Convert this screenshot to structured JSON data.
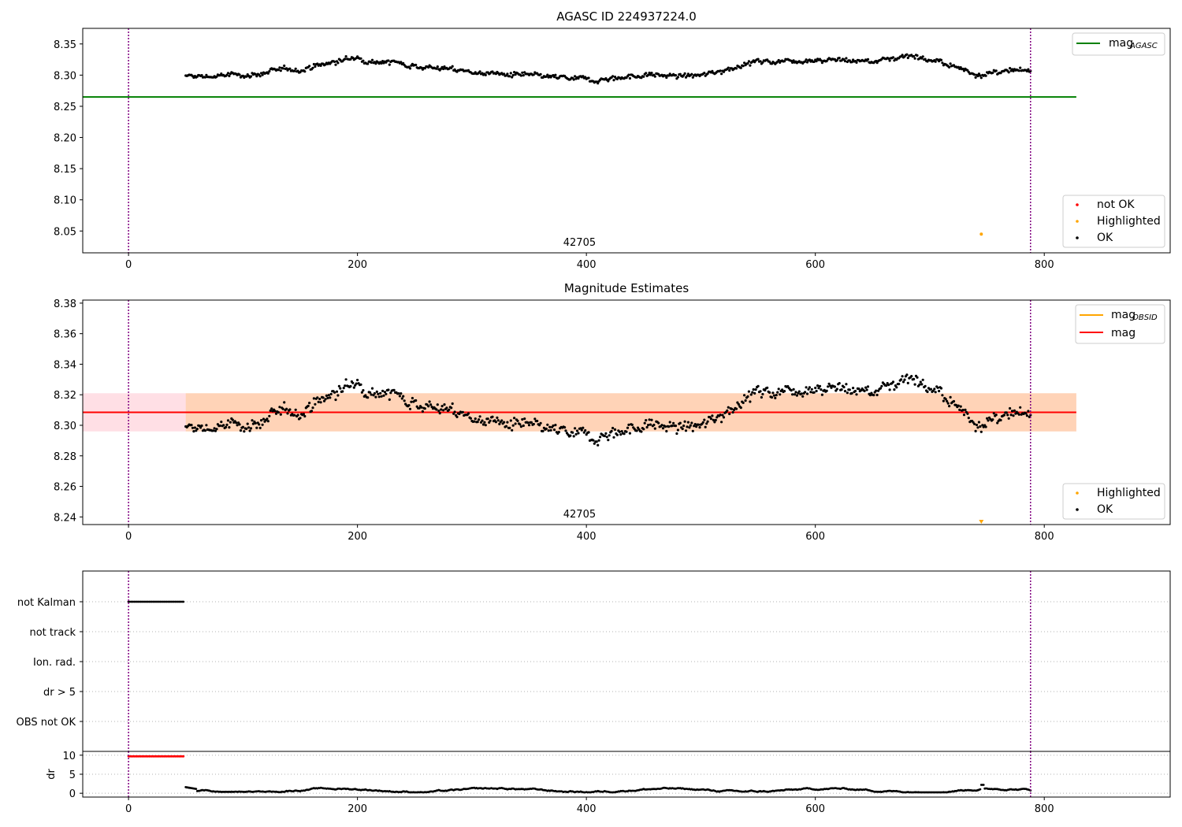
{
  "colors": {
    "ok": "#000000",
    "not_ok": "#ff0000",
    "highlighted": "#ffa500",
    "agasc_line": "#008000",
    "obsid_line": "#ffa500",
    "mag_line": "#ff0000",
    "obs_boundary": "#800080"
  },
  "chart_data": [
    {
      "type": "scatter",
      "title": "AGASC ID 224937224.0",
      "xlim": [
        -40,
        910
      ],
      "ylim": [
        8.015,
        8.375
      ],
      "xticks": [
        0,
        200,
        400,
        600,
        800
      ],
      "yticks": [
        "8.05",
        "8.10",
        "8.15",
        "8.20",
        "8.25",
        "8.30",
        "8.35"
      ],
      "obs_boundaries": [
        0,
        788
      ],
      "obsid_label": "42705",
      "reference_lines": [
        {
          "name": "mag",
          "subscript": "AGASC",
          "y": 8.265,
          "x_range": [
            -40,
            828
          ]
        }
      ],
      "series": [
        {
          "name": "not OK",
          "points": []
        },
        {
          "name": "Highlighted",
          "points": [
            [
              745,
              8.045
            ]
          ]
        },
        {
          "name": "OK",
          "x_range": [
            50,
            788
          ],
          "points": "approximately 740 points forming a noisy curve",
          "y_trend": [
            [
              50,
              8.297
            ],
            [
              100,
              8.3
            ],
            [
              150,
              8.31
            ],
            [
              200,
              8.328
            ],
            [
              250,
              8.316
            ],
            [
              300,
              8.305
            ],
            [
              350,
              8.298
            ],
            [
              400,
              8.292
            ],
            [
              450,
              8.3
            ],
            [
              500,
              8.298
            ],
            [
              540,
              8.32
            ],
            [
              600,
              8.326
            ],
            [
              650,
              8.322
            ],
            [
              685,
              8.333
            ],
            [
              715,
              8.316
            ],
            [
              740,
              8.303
            ],
            [
              788,
              8.305
            ]
          ]
        }
      ],
      "legends": {
        "top_right": [
          "mag AGASC"
        ],
        "bottom_right": [
          "not OK",
          "Highlighted",
          "OK"
        ]
      }
    },
    {
      "type": "scatter",
      "title": "Magnitude Estimates",
      "xlim": [
        -40,
        910
      ],
      "ylim": [
        8.235,
        8.382
      ],
      "xticks": [
        0,
        200,
        400,
        600,
        800
      ],
      "yticks": [
        "8.24",
        "8.26",
        "8.28",
        "8.30",
        "8.32",
        "8.34",
        "8.36",
        "8.38"
      ],
      "obs_boundaries": [
        0,
        788
      ],
      "obsid_label": "42705",
      "reference_lines": [
        {
          "name": "mag",
          "subscript": "OBSID",
          "y": 8.3085,
          "x_range": [
            50,
            788
          ]
        },
        {
          "name": "mag",
          "y": 8.3085,
          "x_range": [
            -40,
            828
          ]
        }
      ],
      "bands": [
        {
          "y_range": [
            8.296,
            8.321
          ],
          "x_range": [
            -40,
            828
          ],
          "color": "pink"
        },
        {
          "y_range": [
            8.296,
            8.321
          ],
          "x_range": [
            50,
            828
          ],
          "color": "light orange"
        }
      ],
      "series": [
        {
          "name": "Highlighted",
          "points": [
            [
              745,
              8.237
            ]
          ]
        },
        {
          "name": "OK",
          "x_range": [
            50,
            788
          ],
          "points": "approximately 740 points, same values as the top panel"
        }
      ],
      "legends": {
        "top_right": [
          "mag OBSID",
          "mag"
        ],
        "bottom_right": [
          "Highlighted",
          "OK"
        ]
      }
    },
    {
      "type": "scatter",
      "title": "",
      "xlim": [
        -40,
        910
      ],
      "categories": [
        "not Kalman",
        "not track",
        "Ion. rad.",
        "dr > 5",
        "OBS not OK"
      ],
      "obs_boundaries": [
        0,
        788
      ],
      "series": [
        {
          "name": "not Kalman",
          "x_range": [
            0,
            49
          ],
          "points": "dense black points"
        }
      ]
    },
    {
      "type": "scatter",
      "title": "",
      "xlim": [
        -40,
        910
      ],
      "ylim": [
        -1,
        11
      ],
      "xticks": [
        0,
        200,
        400,
        600,
        800
      ],
      "yticks": [
        "0",
        "5",
        "10"
      ],
      "ylabel": "dr",
      "obs_boundaries": [
        0,
        788
      ],
      "series": [
        {
          "name": "dr (not OK)",
          "x_range": [
            0,
            49
          ],
          "y": 9.7
        },
        {
          "name": "dr (OK)",
          "x_range": [
            50,
            788
          ],
          "y_range": [
            0.3,
            2.3
          ]
        }
      ]
    }
  ]
}
